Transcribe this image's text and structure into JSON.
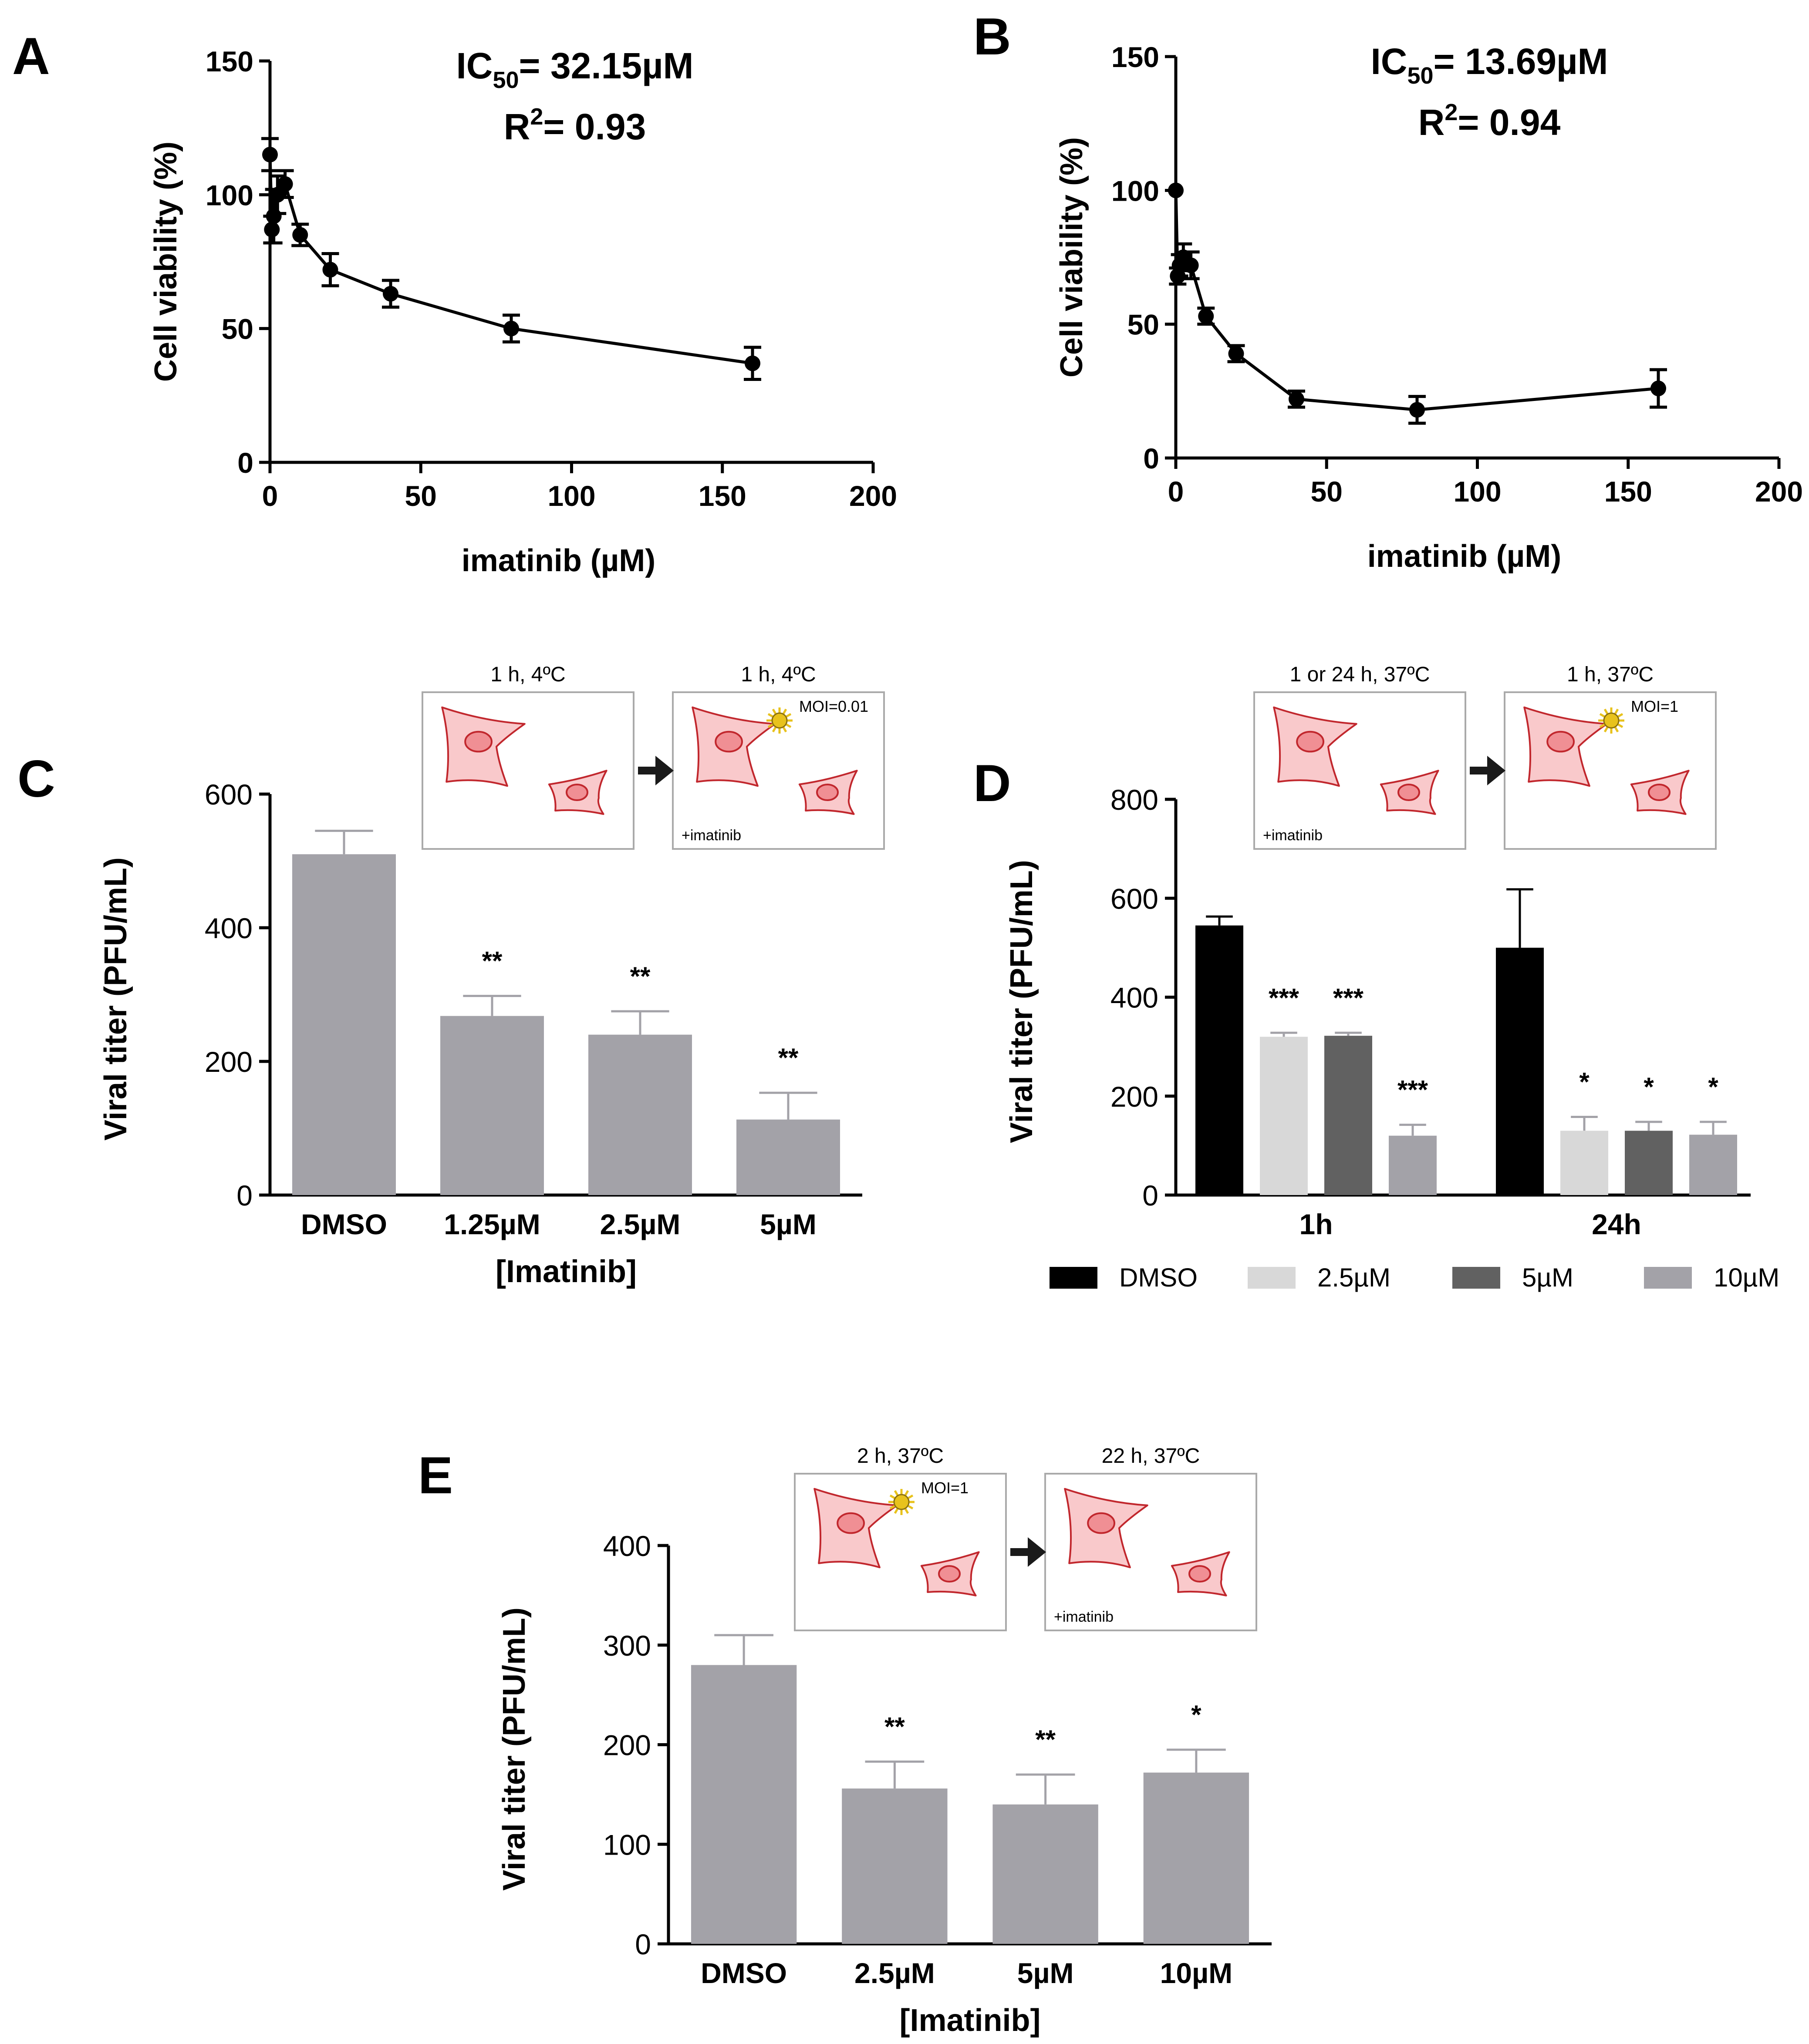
{
  "panel_labels": {
    "a": "A",
    "b": "B",
    "c": "C",
    "d": "D",
    "e": "E"
  },
  "colors": {
    "axis": "#000000",
    "marker": "#000000",
    "bar_gray": "#a3a2a8",
    "dmso_black": "#000000",
    "light_gray": "#d8d8d8",
    "dark_gray": "#616161",
    "mid_gray": "#a3a2a8",
    "cell_fill": "#f9c9cb",
    "cell_stroke": "#c1272d",
    "nucleus_fill": "#f08f94",
    "virus": "#e8c21c",
    "box_stroke": "#aaaaaa"
  },
  "chart_data": [
    {
      "id": "A",
      "type": "line",
      "annotation": {
        "ic50_prefix": "IC",
        "ic50_sub": "50",
        "ic50_value": "= 32.15µM",
        "r2_prefix": "R",
        "r2_sup": "2",
        "r2_value": "= 0.93"
      },
      "xlabel": "imatinib (µM)",
      "ylabel": "Cell viability (%)",
      "xlim": [
        0,
        200
      ],
      "ylim": [
        0,
        150
      ],
      "xticks": [
        "0",
        "50",
        "100",
        "150",
        "200"
      ],
      "yticks": [
        "0",
        "50",
        "100",
        "150"
      ],
      "x": [
        0,
        0.625,
        1.25,
        2.5,
        5,
        10,
        20,
        40,
        80,
        160
      ],
      "y": [
        115,
        87,
        92,
        100,
        104,
        85,
        72,
        63,
        50,
        37
      ],
      "err": [
        6,
        5,
        10,
        7,
        5,
        4,
        6,
        5,
        5,
        6
      ]
    },
    {
      "id": "B",
      "type": "line",
      "annotation": {
        "ic50_prefix": "IC",
        "ic50_sub": "50",
        "ic50_value": "= 13.69µM",
        "r2_prefix": "R",
        "r2_sup": "2",
        "r2_value": "= 0.94"
      },
      "xlabel": "imatinib (µM)",
      "ylabel": "Cell viability (%)",
      "xlim": [
        0,
        200
      ],
      "ylim": [
        0,
        150
      ],
      "xticks": [
        "0",
        "50",
        "100",
        "150",
        "200"
      ],
      "yticks": [
        "0",
        "50",
        "100",
        "150"
      ],
      "x": [
        0,
        0.625,
        1.25,
        2.5,
        5,
        10,
        20,
        40,
        80,
        160
      ],
      "y": [
        100,
        68,
        72,
        75,
        72,
        53,
        39,
        22,
        18,
        26
      ],
      "err": [
        0,
        3,
        4,
        5,
        5,
        3,
        3,
        3,
        5,
        7
      ]
    },
    {
      "id": "C",
      "type": "bar",
      "xlabel": "[Imatinib]",
      "ylabel": "Viral titer (PFU/mL)",
      "ylim": [
        0,
        600
      ],
      "yticks": [
        "0",
        "200",
        "400",
        "600"
      ],
      "categories": [
        "DMSO",
        "1.25µM",
        "2.5µM",
        "5µM"
      ],
      "values": [
        510,
        268,
        240,
        113
      ],
      "err": [
        35,
        30,
        35,
        40
      ],
      "significance": [
        "",
        "**",
        "**",
        "**"
      ],
      "protocol": {
        "step1_label": "1 h, 4ºC",
        "step2_label": "1 h, 4ºC",
        "moi": "MOI=0.01",
        "treatment": "+imatinib",
        "treatment_box": 2
      }
    },
    {
      "id": "D",
      "type": "bar",
      "ylabel": "Viral titer (PFU/mL)",
      "ylim": [
        0,
        800
      ],
      "yticks": [
        "0",
        "200",
        "400",
        "600",
        "800"
      ],
      "categories": [
        "1h",
        "24h"
      ],
      "series": [
        {
          "name": "DMSO",
          "values": [
            545,
            500
          ],
          "err": [
            18,
            118
          ],
          "significance": [
            "",
            ""
          ]
        },
        {
          "name": "2.5µM",
          "values": [
            320,
            130
          ],
          "err": [
            8,
            28
          ],
          "significance": [
            "***",
            "*"
          ]
        },
        {
          "name": "5µM",
          "values": [
            322,
            130
          ],
          "err": [
            6,
            18
          ],
          "significance": [
            "***",
            "*"
          ]
        },
        {
          "name": "10µM",
          "values": [
            120,
            122
          ],
          "err": [
            22,
            26
          ],
          "significance": [
            "***",
            "*"
          ]
        }
      ],
      "legend": "bottom",
      "protocol": {
        "step1_label": "1 or 24 h, 37ºC",
        "step2_label": "1 h, 37ºC",
        "moi": "MOI=1",
        "treatment": "+imatinib",
        "treatment_box": 1
      }
    },
    {
      "id": "E",
      "type": "bar",
      "xlabel": "[Imatinib]",
      "ylabel": "Viral titer (PFU/mL)",
      "ylim": [
        0,
        400
      ],
      "yticks": [
        "0",
        "100",
        "200",
        "300",
        "400"
      ],
      "categories": [
        "DMSO",
        "2.5µM",
        "5µM",
        "10µM"
      ],
      "values": [
        280,
        156,
        140,
        172
      ],
      "err": [
        30,
        27,
        30,
        23
      ],
      "significance": [
        "",
        "**",
        "**",
        "*"
      ],
      "protocol": {
        "step1_label": "2 h, 37ºC",
        "step2_label": "22 h, 37ºC",
        "moi": "MOI=1",
        "treatment": "+imatinib",
        "treatment_box": 2
      }
    }
  ]
}
